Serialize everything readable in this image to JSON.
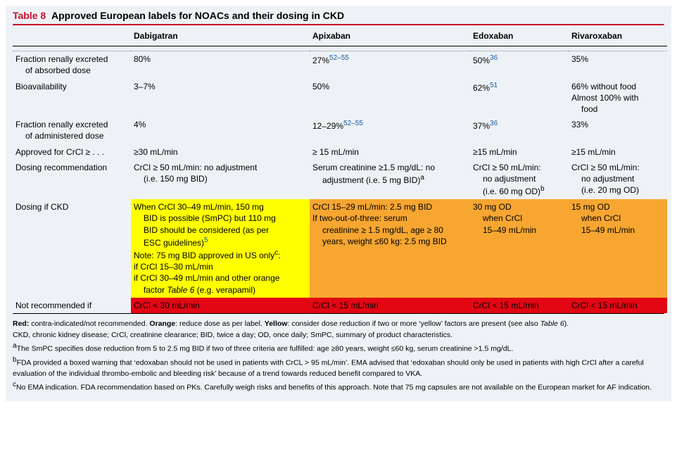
{
  "title_label": "Table 8",
  "title_text": "Approved European labels for NOACs and their dosing in CKD",
  "columns": {
    "rowlabel": "",
    "dabigatran": "Dabigatran",
    "apixaban": "Apixaban",
    "edoxaban": "Edoxaban",
    "rivaroxaban": "Rivaroxaban"
  },
  "rows": {
    "frac_renal_abs": {
      "label_l1": "Fraction renally excreted",
      "label_l2": "of absorbed dose",
      "dabi": "80%",
      "apix": "27%",
      "apix_sup": "52–55",
      "edox": "50%",
      "edox_sup": "36",
      "riva": "35%"
    },
    "bioavail": {
      "label": "Bioavailability",
      "dabi": "3–7%",
      "apix": "50%",
      "edox": "62%",
      "edox_sup": "51",
      "riva_l1": "66% without food",
      "riva_l2": "Almost 100% with",
      "riva_l3": "food"
    },
    "frac_renal_admin": {
      "label_l1": "Fraction renally excreted",
      "label_l2": "of administered dose",
      "dabi": "4%",
      "apix": "12–29%",
      "apix_sup": "52–55",
      "edox": "37%",
      "edox_sup": "36",
      "riva": "33%"
    },
    "approved": {
      "label": "Approved for CrCl ≥ . . .",
      "dabi": "≥30 mL/min",
      "apix": "≥ 15 mL/min",
      "edox": "≥15 mL/min",
      "riva": "≥15 mL/min"
    },
    "dosing_rec": {
      "label": "Dosing recommendation",
      "dabi_l1": "CrCl ≥ 50 mL/min: no adjustment",
      "dabi_l2": "(i.e. 150 mg BID)",
      "apix_l1": "Serum creatinine ≥1.5 mg/dL: no",
      "apix_l2": "adjustment (i.e. 5 mg BID)",
      "apix_sup": "a",
      "edox_l1": "CrCl ≥ 50 mL/min:",
      "edox_l2": "no adjustment",
      "edox_l3": "(i.e. 60 mg OD)",
      "edox_sup": "b",
      "riva_l1": "CrCl ≥ 50 mL/min:",
      "riva_l2": "no adjustment",
      "riva_l3": "(i.e. 20 mg OD)"
    },
    "dosing_ckd": {
      "label": "Dosing if CKD",
      "dabi_l1": "When CrCl 30–49 mL/min, 150 mg",
      "dabi_l2": "BID is possible (SmPC) but 110 mg",
      "dabi_l3": "BID should be considered (as per",
      "dabi_l4": "ESC guidelines)",
      "dabi_sup5": "5",
      "dabi_l5a": "Note: 75 mg BID approved in US only",
      "dabi_supc": "c",
      "dabi_l5b": ":",
      "dabi_l6": "if CrCl 15–30 mL/min",
      "dabi_l7a": "if CrCl 30–49 mL/min and other orange",
      "dabi_l7b": "factor ",
      "dabi_l7c": "Table 6",
      "dabi_l7d": " (e.g. verapamil)",
      "apix_l1": "CrCl 15–29 mL/min: 2.5 mg BID",
      "apix_l2": "If two-out-of-three: serum",
      "apix_l3": "creatinine ≥ 1.5 mg/dL, age ≥ 80",
      "apix_l4": "years, weight ≤60 kg: 2.5 mg BID",
      "edox_l1": "30 mg OD",
      "edox_l2": "when CrCl",
      "edox_l3": "15–49 mL/min",
      "riva_l1": "15 mg OD",
      "riva_l2": "when CrCl",
      "riva_l3": "15–49 mL/min"
    },
    "not_rec": {
      "label": "Not recommended if",
      "dabi": "CrCl < 30 mL/min",
      "apix": "CrCl < 15 mL/min",
      "edox": "CrCl < 15 mL/min",
      "riva": "CrCl < 15 mL/min"
    }
  },
  "legend": {
    "l1a": "Red:",
    "l1b": " contra-indicated/not recommended. ",
    "l1c": "Orange",
    "l1d": ": reduce dose as per label. ",
    "l1e": "Yellow",
    "l1f": ": consider dose reduction if two or more ‘yellow’ factors are present (see also ",
    "l1g": "Table 6",
    "l1h": ").",
    "l2": "CKD, chronic kidney disease; CrCl, creatinine clearance; BID, twice a day; OD, once daily; SmPC, summary of product characteristics.",
    "l3sup": "a",
    "l3": "The SmPC specifies dose reduction from 5 to 2.5 mg BID if two of three criteria are fulfilled: age ≥80 years, weight ≤60 kg, serum creatinine >1.5 mg/dL.",
    "l4sup": "b",
    "l4": "FDA provided a boxed warning that ‘edoxaban should not be used in patients with CrCL > 95 mL/min’. EMA advised that ‘edoxaban should only be used in patients with high CrCl after a careful evaluation of the individual thrombo-embolic and bleeding risk’ because of a trend towards reduced benefit compared to VKA.",
    "l5sup": "c",
    "l5": "No EMA indication. FDA recommendation based on PKs. Carefully weigh risks and benefits of this approach. Note that 75 mg capsules are not available on the European market for AF indication."
  }
}
